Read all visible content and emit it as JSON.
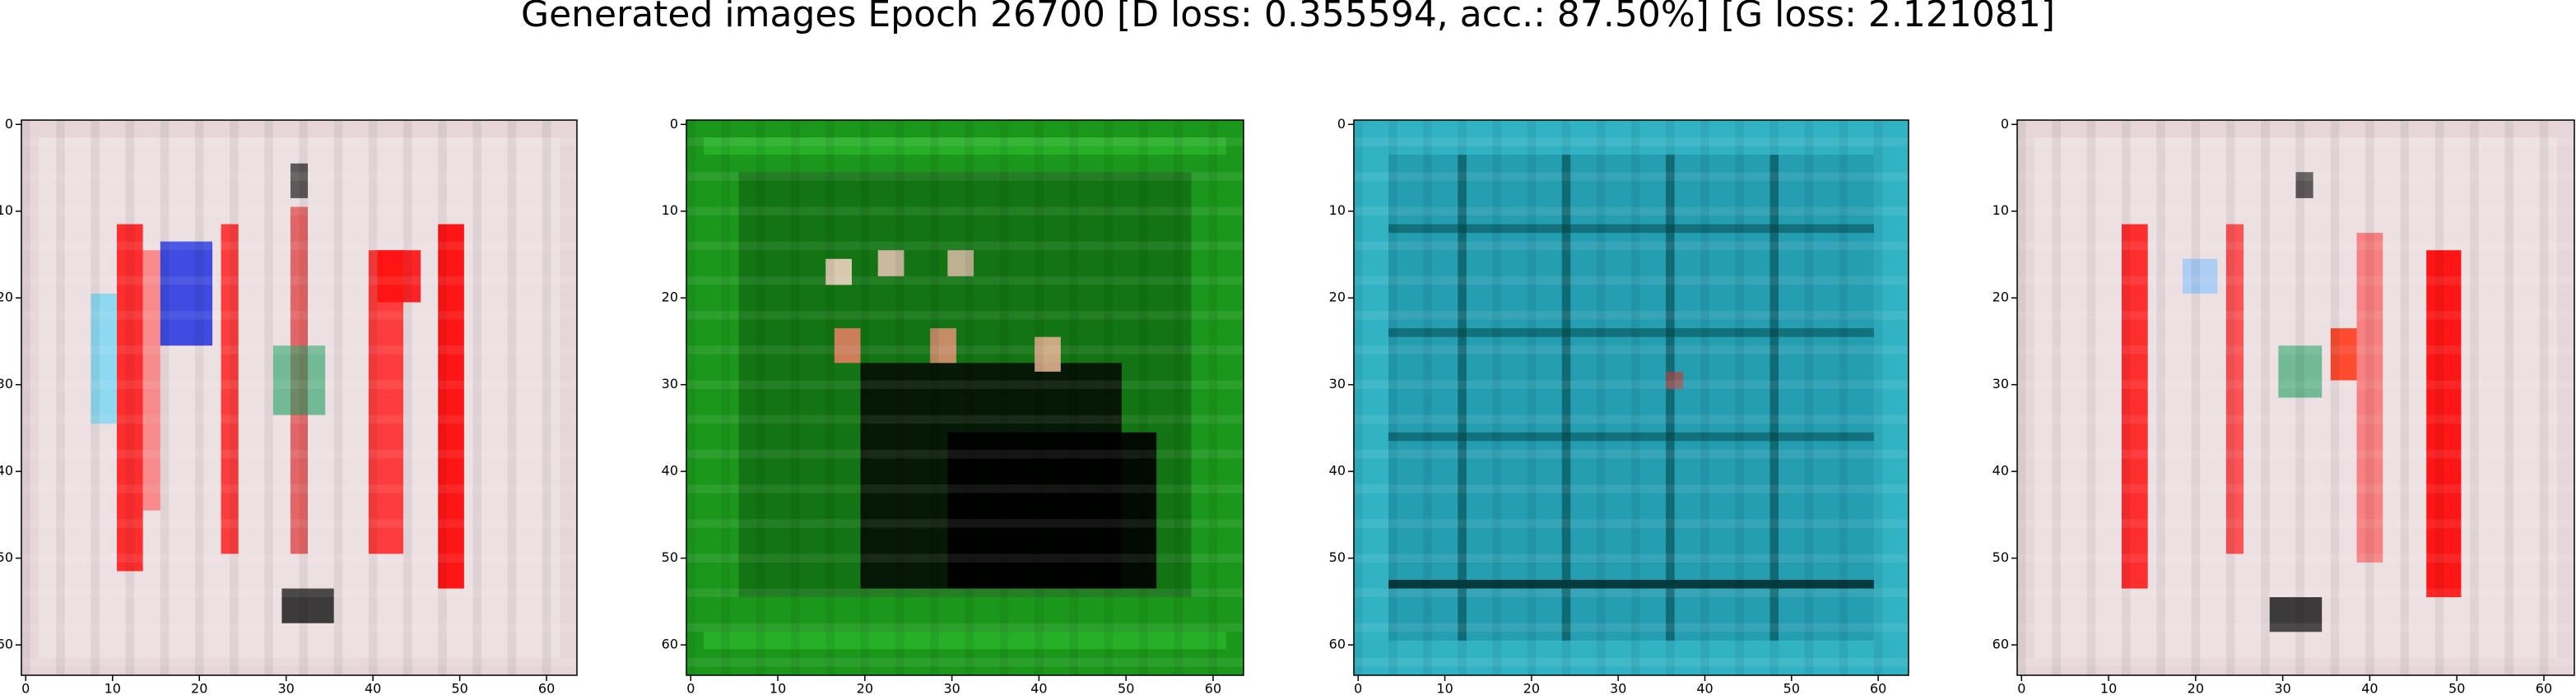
{
  "title": "Generated images Epoch 26700 [D loss: 0.355594, acc.: 87.50%] [G loss: 2.121081]",
  "chart_data": [
    {
      "type": "image",
      "color": "#e6d6da",
      "xlim": [
        -0.5,
        63.5
      ],
      "ylim": [
        63.5,
        -0.5
      ],
      "xticks": [
        0,
        10,
        20,
        30,
        40,
        50,
        60
      ],
      "yticks": [
        0,
        10,
        20,
        30,
        40,
        50,
        60
      ]
    },
    {
      "type": "image",
      "color": "#1f8f1f",
      "xlim": [
        -0.5,
        63.5
      ],
      "ylim": [
        63.5,
        -0.5
      ],
      "xticks": [
        0,
        10,
        20,
        30,
        40,
        50,
        60
      ],
      "yticks": [
        0,
        10,
        20,
        30,
        40,
        50,
        60
      ]
    },
    {
      "type": "image",
      "color": "#2aa7b9",
      "xlim": [
        -0.5,
        63.5
      ],
      "ylim": [
        63.5,
        -0.5
      ],
      "xticks": [
        0,
        10,
        20,
        30,
        40,
        50,
        60
      ],
      "yticks": [
        0,
        10,
        20,
        30,
        40,
        50,
        60
      ]
    },
    {
      "type": "image",
      "color": "#e6d6da",
      "xlim": [
        -0.5,
        63.5
      ],
      "ylim": [
        63.5,
        -0.5
      ],
      "xticks": [
        0,
        10,
        20,
        30,
        40,
        50,
        60
      ],
      "yticks": [
        0,
        10,
        20,
        30,
        40,
        50,
        60
      ]
    }
  ]
}
